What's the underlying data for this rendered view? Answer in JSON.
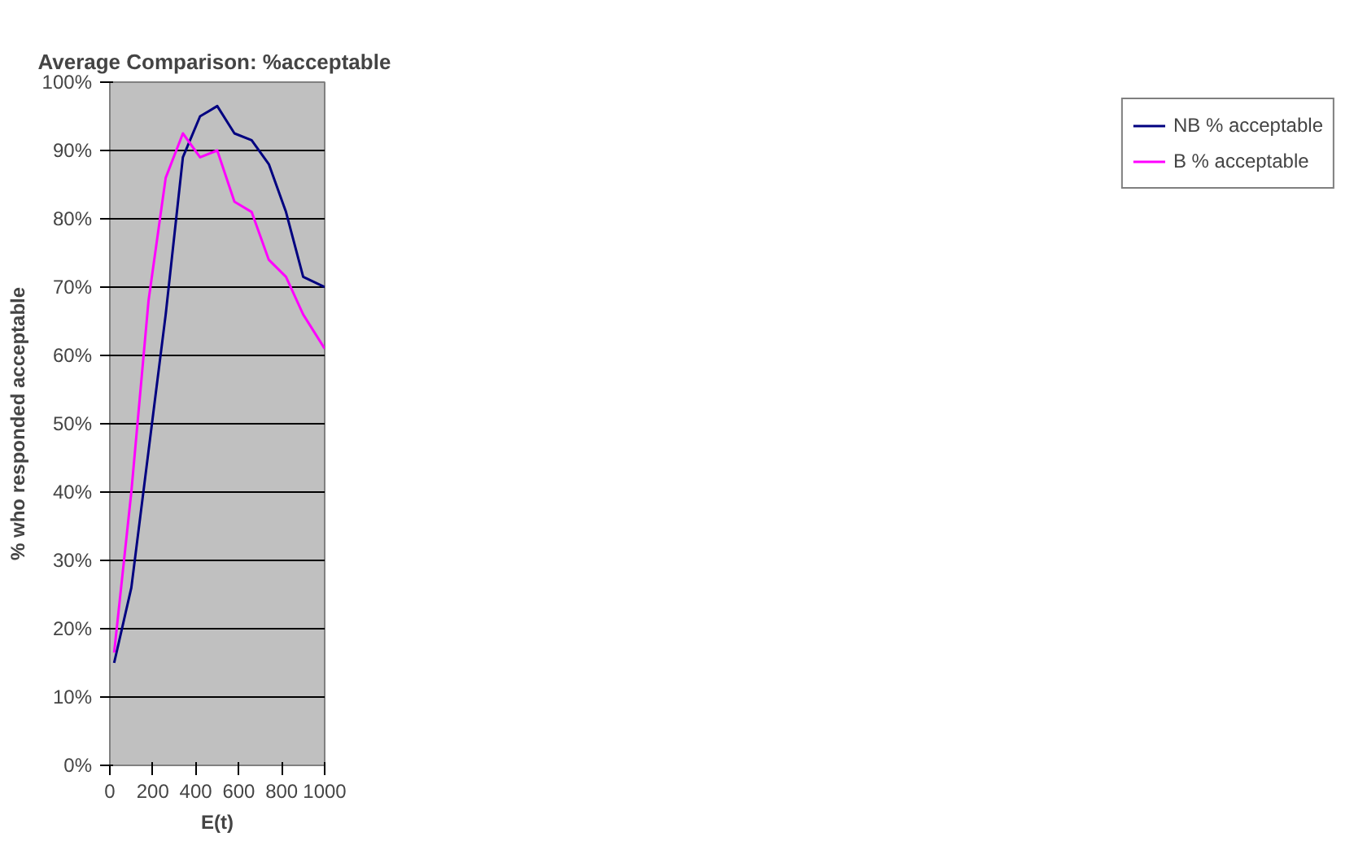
{
  "chart_data": {
    "type": "line",
    "title": "Average Comparison:  %acceptable",
    "xlabel": "E(t)",
    "ylabel": "% who responded acceptable",
    "x": [
      20,
      100,
      180,
      260,
      340,
      420,
      500,
      580,
      660,
      740,
      820,
      900,
      1000
    ],
    "series": [
      {
        "name": "NB % acceptable",
        "color": "#000080",
        "values": [
          15,
          26,
          46,
          66,
          89,
          95,
          96.5,
          92.5,
          91.5,
          88,
          81,
          71.5,
          70
        ]
      },
      {
        "name": "B % acceptable",
        "color": "#ff00ff",
        "values": [
          16.5,
          40,
          68,
          86,
          92.5,
          89,
          90,
          82.5,
          81,
          74,
          71.5,
          66,
          61
        ]
      }
    ],
    "xlim": [
      0,
      1000
    ],
    "xticks": [
      0,
      200,
      400,
      600,
      800,
      1000
    ],
    "ylim": [
      0,
      100
    ],
    "yticks": [
      {
        "value": 0,
        "label": "0%"
      },
      {
        "value": 10,
        "label": "10%"
      },
      {
        "value": 20,
        "label": "20%"
      },
      {
        "value": 30,
        "label": "30%"
      },
      {
        "value": 40,
        "label": "40%"
      },
      {
        "value": 50,
        "label": "50%"
      },
      {
        "value": 60,
        "label": "60%"
      },
      {
        "value": 70,
        "label": "70%"
      },
      {
        "value": 80,
        "label": "80%"
      },
      {
        "value": 90,
        "label": "90%"
      },
      {
        "value": 100,
        "label": "100%"
      }
    ],
    "grid": "y",
    "legend": "right",
    "marker": "none",
    "line_style": "solid"
  }
}
